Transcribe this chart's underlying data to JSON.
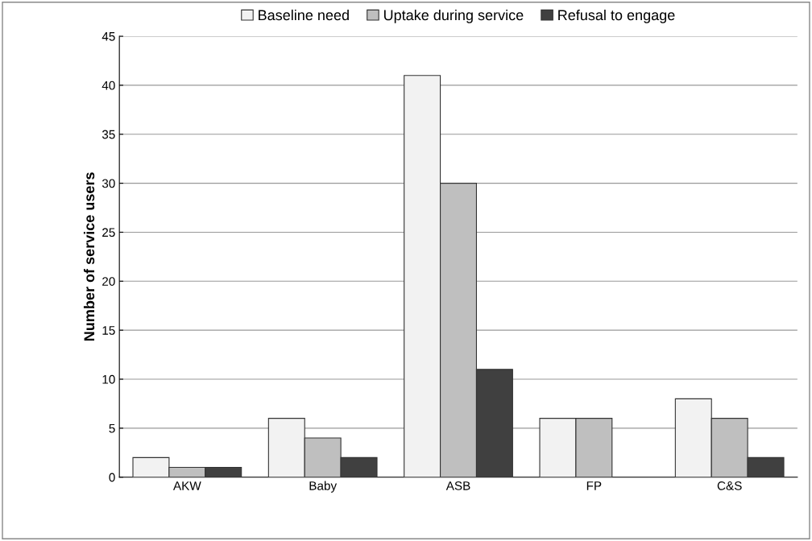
{
  "chart_data": {
    "type": "bar",
    "ylabel": "Number of service users",
    "categories": [
      "AKW",
      "Baby",
      "ASB",
      "FP",
      "C&S"
    ],
    "series": [
      {
        "name": "Baseline need",
        "color": "#f2f2f2",
        "values": [
          2,
          6,
          41,
          6,
          8
        ]
      },
      {
        "name": "Uptake during service",
        "color": "#bfbfbf",
        "values": [
          1,
          4,
          30,
          6,
          6
        ]
      },
      {
        "name": "Refusal to engage",
        "color": "#404040",
        "values": [
          1,
          2,
          11,
          0,
          2
        ]
      }
    ],
    "ylim": [
      0,
      45
    ],
    "yticks": [
      0,
      5,
      10,
      15,
      20,
      25,
      30,
      35,
      40,
      45
    ],
    "grid": "y",
    "legend": "top"
  }
}
